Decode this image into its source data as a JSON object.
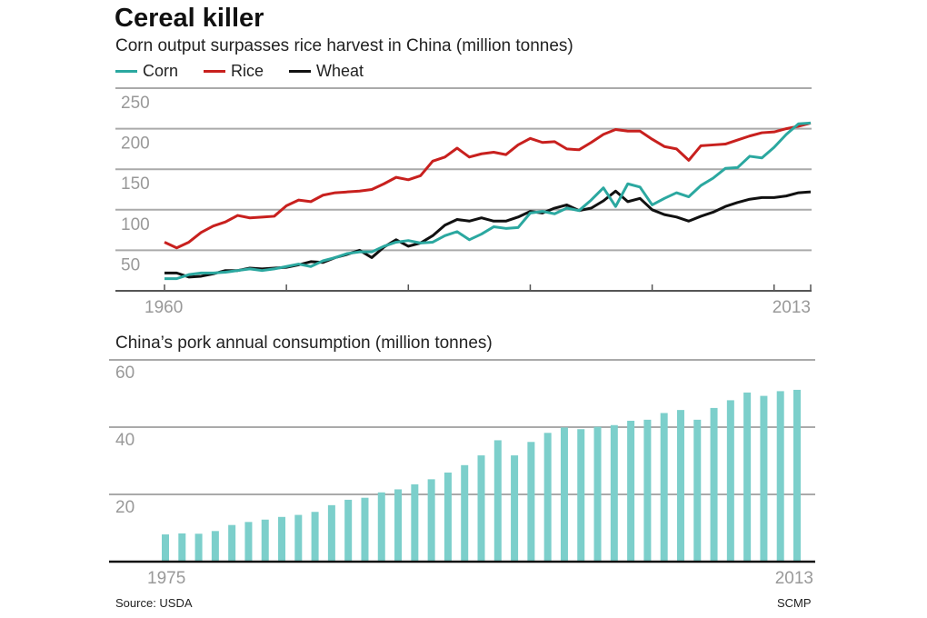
{
  "title": "Cereal killer",
  "source": "Source: USDA",
  "credit": "SCMP",
  "chart_data": [
    {
      "type": "line",
      "title": "Corn output surpasses rice harvest in China (million tonnes)",
      "x_start": 1960,
      "x_end": 2013,
      "x_tick_labels": [
        "1960",
        "2013"
      ],
      "y_ticks": [
        50,
        100,
        150,
        200,
        250
      ],
      "ylim": [
        0,
        250
      ],
      "grid": true,
      "legend_placement": "top-left",
      "series": [
        {
          "name": "Corn",
          "color": "#2ba8a0",
          "values": [
            15,
            15,
            20,
            22,
            22,
            23,
            25,
            27,
            25,
            27,
            30,
            33,
            30,
            37,
            41,
            46,
            48,
            48,
            55,
            60,
            62,
            59,
            60,
            68,
            73,
            63,
            70,
            79,
            77,
            78,
            96,
            98,
            95,
            102,
            99,
            112,
            127,
            104,
            132,
            128,
            106,
            114,
            121,
            116,
            130,
            139,
            151,
            152,
            166,
            164,
            177,
            193,
            206,
            207
          ]
        },
        {
          "name": "Rice",
          "color": "#c8201e",
          "values": [
            60,
            53,
            60,
            72,
            80,
            85,
            93,
            90,
            91,
            92,
            105,
            112,
            110,
            118,
            121,
            122,
            123,
            125,
            132,
            140,
            137,
            142,
            160,
            165,
            176,
            165,
            169,
            171,
            168,
            180,
            188,
            183,
            184,
            175,
            174,
            183,
            193,
            199,
            197,
            197,
            187,
            178,
            175,
            161,
            179,
            180,
            181,
            186,
            191,
            195,
            196,
            200,
            203,
            207
          ]
        },
        {
          "name": "Wheat",
          "color": "#111111",
          "values": [
            22,
            22,
            17,
            18,
            21,
            25,
            25,
            28,
            27,
            28,
            29,
            32,
            36,
            35,
            41,
            45,
            50,
            41,
            54,
            63,
            55,
            59,
            68,
            81,
            88,
            86,
            90,
            86,
            86,
            91,
            98,
            96,
            102,
            106,
            99,
            102,
            111,
            123,
            110,
            114,
            100,
            94,
            91,
            86,
            92,
            97,
            104,
            109,
            113,
            115,
            115,
            117,
            121,
            122
          ]
        }
      ]
    },
    {
      "type": "bar",
      "title": "China’s pork annual consumption (million tonnes)",
      "x_start": 1975,
      "x_end": 2013,
      "x_tick_labels": [
        "1975",
        "2013"
      ],
      "y_ticks": [
        20,
        40,
        60
      ],
      "ylim": [
        0,
        60
      ],
      "grid": true,
      "color": "#7ccfcb",
      "values": [
        8.1,
        8.4,
        8.3,
        9.1,
        10.9,
        11.8,
        12.5,
        13.3,
        13.9,
        14.8,
        16.8,
        18.4,
        19.0,
        20.6,
        21.5,
        23.0,
        24.5,
        26.5,
        28.7,
        31.6,
        36.1,
        31.6,
        35.6,
        38.3,
        39.9,
        39.4,
        40.1,
        40.6,
        41.9,
        42.2,
        44.2,
        45.1,
        42.2,
        45.7,
        48.0,
        50.3,
        49.3,
        50.7,
        51.1
      ]
    }
  ]
}
